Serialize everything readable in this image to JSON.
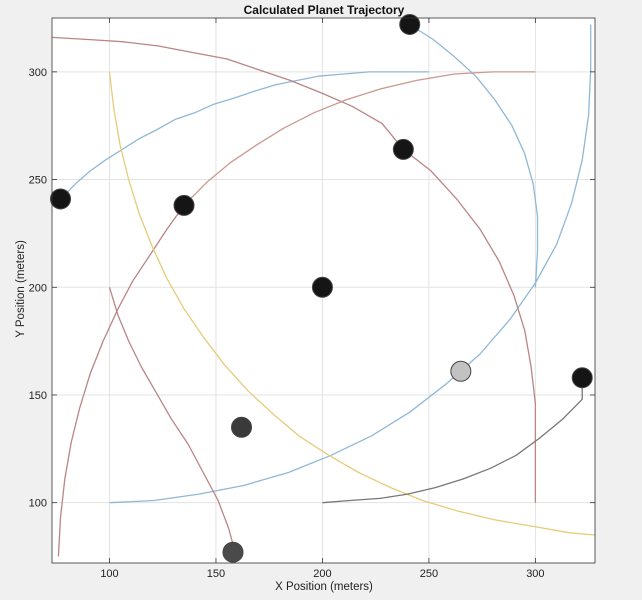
{
  "chart_data": {
    "type": "scatter",
    "title": "Calculated Planet Trajectory",
    "xlabel": "X Position (meters)",
    "ylabel": "Y Position (meters)",
    "xlim": [
      73,
      328
    ],
    "ylim": [
      72,
      325
    ],
    "xticks": [
      100,
      150,
      200,
      250,
      300
    ],
    "yticks": [
      100,
      150,
      200,
      250,
      300
    ],
    "grid": true,
    "series": [
      {
        "color": "#8fb8d6",
        "points": [
          [
            77,
            241
          ],
          [
            84,
            248
          ],
          [
            91,
            254
          ],
          [
            98,
            259
          ],
          [
            106,
            264
          ],
          [
            114,
            269
          ],
          [
            122,
            273
          ],
          [
            131,
            278
          ],
          [
            140,
            281
          ],
          [
            149,
            285
          ],
          [
            159,
            288
          ],
          [
            168,
            291
          ],
          [
            178,
            294
          ],
          [
            188,
            296
          ],
          [
            198,
            298
          ],
          [
            210,
            299
          ],
          [
            222,
            300
          ],
          [
            236,
            300
          ],
          [
            250,
            300
          ]
        ]
      },
      {
        "color": "#8fb8d6",
        "points": [
          [
            241,
            322
          ],
          [
            252,
            315
          ],
          [
            262,
            307
          ],
          [
            272,
            298
          ],
          [
            281,
            287
          ],
          [
            289,
            275
          ],
          [
            295,
            262
          ],
          [
            299,
            248
          ],
          [
            301,
            233
          ],
          [
            301,
            217
          ],
          [
            300,
            200
          ]
        ]
      },
      {
        "color": "#8fb8d6",
        "points": [
          [
            100,
            100
          ],
          [
            121,
            101
          ],
          [
            142,
            104
          ],
          [
            163,
            108
          ],
          [
            184,
            114
          ],
          [
            204,
            122
          ],
          [
            223,
            131
          ],
          [
            241,
            142
          ],
          [
            258,
            155
          ],
          [
            274,
            169
          ],
          [
            288,
            185
          ],
          [
            300,
            202
          ],
          [
            310,
            220
          ],
          [
            317,
            239
          ],
          [
            322,
            259
          ],
          [
            325,
            280
          ],
          [
            326,
            301
          ],
          [
            326,
            322
          ]
        ]
      },
      {
        "color": "#b98585",
        "points": [
          [
            73,
            316
          ],
          [
            90,
            315
          ],
          [
            106,
            314
          ],
          [
            123,
            312
          ],
          [
            139,
            309
          ],
          [
            155,
            306
          ],
          [
            170,
            301
          ],
          [
            185,
            296
          ],
          [
            200,
            290
          ],
          [
            214,
            284
          ],
          [
            228,
            276
          ],
          [
            238,
            264
          ]
        ]
      },
      {
        "color": "#b98585",
        "points": [
          [
            238,
            264
          ],
          [
            251,
            254
          ],
          [
            263,
            241
          ],
          [
            274,
            227
          ],
          [
            283,
            212
          ],
          [
            290,
            196
          ],
          [
            295,
            180
          ],
          [
            298,
            163
          ],
          [
            300,
            146
          ],
          [
            300,
            128
          ],
          [
            300,
            100
          ]
        ]
      },
      {
        "color": "#b98585",
        "points": [
          [
            135,
            238
          ],
          [
            127,
            227
          ],
          [
            119,
            215
          ],
          [
            111,
            203
          ],
          [
            104,
            190
          ],
          [
            97,
            175
          ],
          [
            91,
            160
          ],
          [
            86,
            144
          ],
          [
            82,
            128
          ],
          [
            79,
            111
          ],
          [
            77,
            93
          ],
          [
            76,
            75
          ]
        ]
      },
      {
        "color": "#b98585",
        "points": [
          [
            100,
            200
          ],
          [
            104,
            187
          ],
          [
            109,
            175
          ],
          [
            115,
            163
          ],
          [
            122,
            151
          ],
          [
            129,
            139
          ],
          [
            137,
            127
          ],
          [
            144,
            114
          ],
          [
            151,
            101
          ],
          [
            156,
            88
          ],
          [
            159,
            77
          ]
        ]
      },
      {
        "color": "#c99990",
        "points": [
          [
            135,
            238
          ],
          [
            146,
            249
          ],
          [
            157,
            258
          ],
          [
            169,
            266
          ],
          [
            182,
            274
          ],
          [
            196,
            281
          ],
          [
            211,
            287
          ],
          [
            227,
            292
          ],
          [
            244,
            296
          ],
          [
            262,
            299
          ],
          [
            280,
            300
          ],
          [
            300,
            300
          ]
        ]
      },
      {
        "color": "#e5cc7a",
        "points": [
          [
            100,
            300
          ],
          [
            102,
            283
          ],
          [
            105,
            266
          ],
          [
            109,
            250
          ],
          [
            114,
            234
          ],
          [
            120,
            219
          ],
          [
            127,
            204
          ],
          [
            135,
            190
          ],
          [
            144,
            177
          ],
          [
            154,
            164
          ],
          [
            165,
            152
          ],
          [
            177,
            141
          ],
          [
            189,
            131
          ],
          [
            203,
            122
          ],
          [
            217,
            114
          ],
          [
            232,
            107
          ],
          [
            247,
            101
          ],
          [
            264,
            96
          ],
          [
            281,
            92
          ],
          [
            299,
            89
          ],
          [
            316,
            86
          ],
          [
            328,
            85
          ]
        ]
      },
      {
        "color": "#777777",
        "points": [
          [
            200,
            100
          ],
          [
            213,
            101
          ],
          [
            227,
            102
          ],
          [
            240,
            104
          ],
          [
            253,
            107
          ],
          [
            266,
            111
          ],
          [
            279,
            116
          ],
          [
            291,
            122
          ],
          [
            302,
            130
          ],
          [
            313,
            139
          ],
          [
            322,
            148
          ],
          [
            322,
            158
          ]
        ]
      }
    ],
    "points": [
      {
        "x": 200,
        "y": 200,
        "color": "#151515"
      },
      {
        "x": 241,
        "y": 322,
        "color": "#151515"
      },
      {
        "x": 238,
        "y": 264,
        "color": "#151515"
      },
      {
        "x": 77,
        "y": 241,
        "color": "#151515"
      },
      {
        "x": 135,
        "y": 238,
        "color": "#151515"
      },
      {
        "x": 322,
        "y": 158,
        "color": "#151515"
      },
      {
        "x": 162,
        "y": 135,
        "color": "#3a3a3a"
      },
      {
        "x": 158,
        "y": 77,
        "color": "#4a4a4a"
      },
      {
        "x": 265,
        "y": 161,
        "color": "#c2c2c2"
      }
    ]
  }
}
